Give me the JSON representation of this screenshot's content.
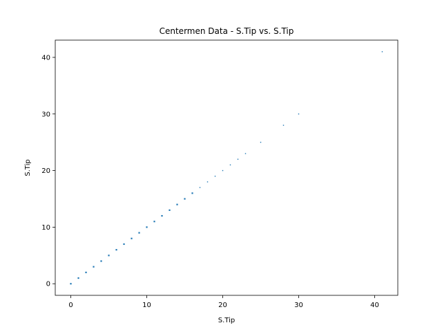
{
  "chart_data": {
    "type": "scatter",
    "title": "Centermen Data - S.Tip vs. S.Tip",
    "xlabel": "S.Tip",
    "ylabel": "S.Tip",
    "xlim": [
      -2.05,
      43.05
    ],
    "ylim": [
      -2.05,
      43.05
    ],
    "xticks": [
      0,
      10,
      20,
      30,
      40
    ],
    "yticks": [
      0,
      10,
      20,
      30,
      40
    ],
    "grid": false,
    "marker_color": "#1f77b4",
    "points": [
      {
        "x": 0,
        "y": 0
      },
      {
        "x": 1,
        "y": 1
      },
      {
        "x": 2,
        "y": 2
      },
      {
        "x": 3,
        "y": 3
      },
      {
        "x": 4,
        "y": 4
      },
      {
        "x": 5,
        "y": 5
      },
      {
        "x": 6,
        "y": 6
      },
      {
        "x": 7,
        "y": 7
      },
      {
        "x": 8,
        "y": 8
      },
      {
        "x": 9,
        "y": 9
      },
      {
        "x": 10,
        "y": 10
      },
      {
        "x": 11,
        "y": 11
      },
      {
        "x": 12,
        "y": 12
      },
      {
        "x": 13,
        "y": 13
      },
      {
        "x": 14,
        "y": 14
      },
      {
        "x": 15,
        "y": 15
      },
      {
        "x": 16,
        "y": 16
      },
      {
        "x": 17,
        "y": 17
      },
      {
        "x": 18,
        "y": 18
      },
      {
        "x": 19,
        "y": 19
      },
      {
        "x": 20,
        "y": 20
      },
      {
        "x": 21,
        "y": 21
      },
      {
        "x": 22,
        "y": 22
      },
      {
        "x": 23,
        "y": 23
      },
      {
        "x": 25,
        "y": 25
      },
      {
        "x": 28,
        "y": 28
      },
      {
        "x": 30,
        "y": 30
      },
      {
        "x": 41,
        "y": 41
      }
    ]
  }
}
